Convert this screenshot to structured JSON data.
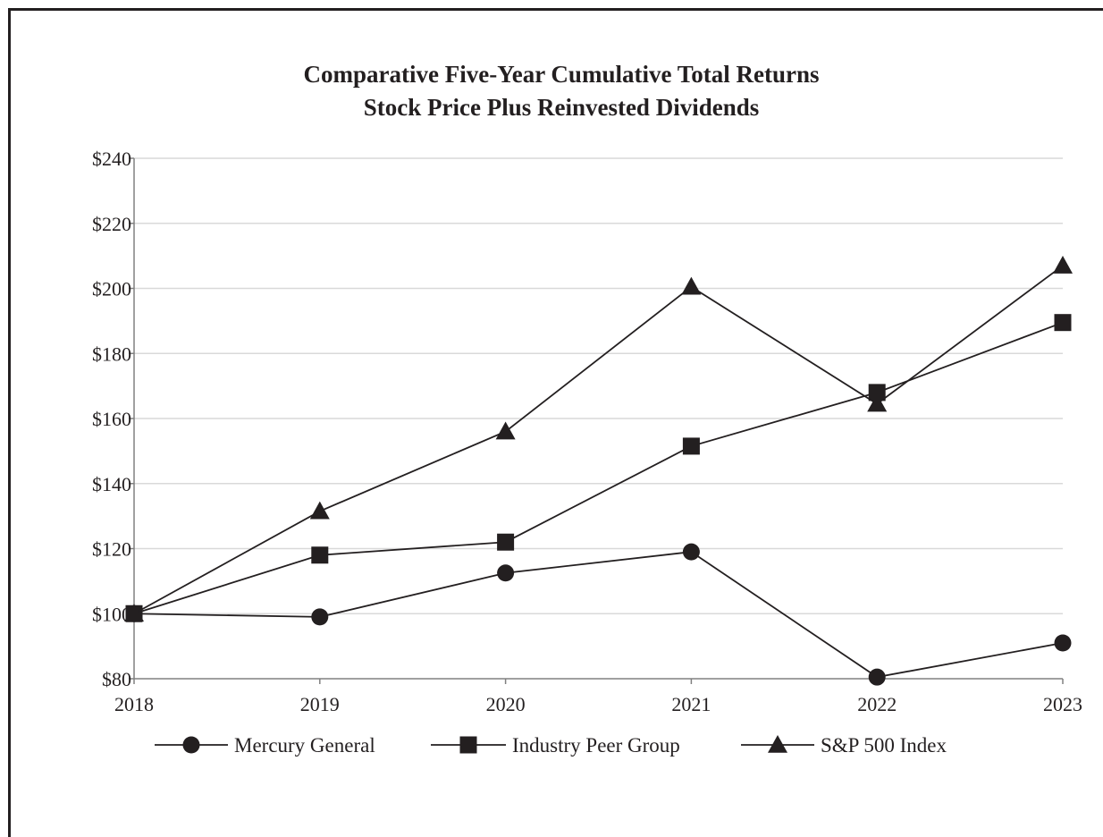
{
  "chart_data": {
    "type": "line",
    "title": "Comparative Five-Year Cumulative Total Returns",
    "subtitle": "Stock Price Plus Reinvested Dividends",
    "xlabel": "",
    "ylabel": "",
    "x": [
      "2018",
      "2019",
      "2020",
      "2021",
      "2022",
      "2023"
    ],
    "ylim": [
      80,
      240
    ],
    "yticks": [
      80,
      100,
      120,
      140,
      160,
      180,
      200,
      220,
      240
    ],
    "ytick_labels": [
      "$80",
      "$100",
      "$120",
      "$140",
      "$160",
      "$180",
      "$200",
      "$220",
      "$240"
    ],
    "grid": true,
    "legend_position": "bottom",
    "series": [
      {
        "name": "Mercury General",
        "marker": "circle",
        "values": [
          100,
          99,
          112.5,
          119,
          80.5,
          91
        ]
      },
      {
        "name": "Industry Peer Group",
        "marker": "square",
        "values": [
          100,
          118,
          122,
          151.5,
          168,
          189.5
        ]
      },
      {
        "name": "S&P 500 Index",
        "marker": "triangle",
        "values": [
          100,
          131.5,
          156,
          200.5,
          164.5,
          207
        ]
      }
    ],
    "colors": {
      "line": "#231f20",
      "marker": "#231f20",
      "grid": "#d9d9d9",
      "axis": "#808080",
      "frame": "#231f20"
    }
  }
}
